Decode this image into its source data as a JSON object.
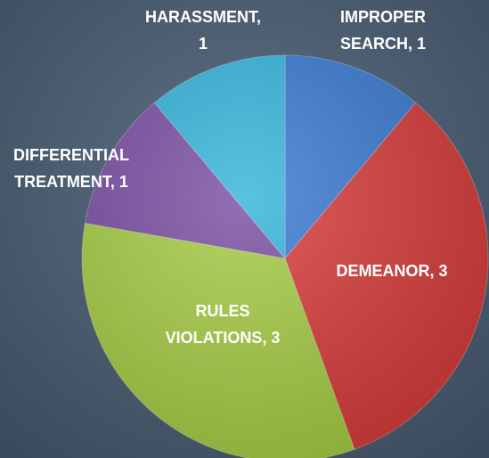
{
  "chart_data": {
    "type": "pie",
    "values": [
      1,
      3,
      3,
      1,
      1
    ],
    "value_labels": [
      [
        "IMPROPER",
        "SEARCH, 1"
      ],
      [
        "DEMEANOR, 3"
      ],
      [
        "RULES",
        "VIOLATIONS, 3"
      ],
      [
        "DIFFERENTIAL",
        "TREATMENT, 1"
      ],
      [
        "HARASSMENT,",
        "1"
      ]
    ],
    "colors": [
      "#3b7bd2",
      "#d63d3b",
      "#a6cc45",
      "#7b4fa3",
      "#35b5db"
    ]
  }
}
